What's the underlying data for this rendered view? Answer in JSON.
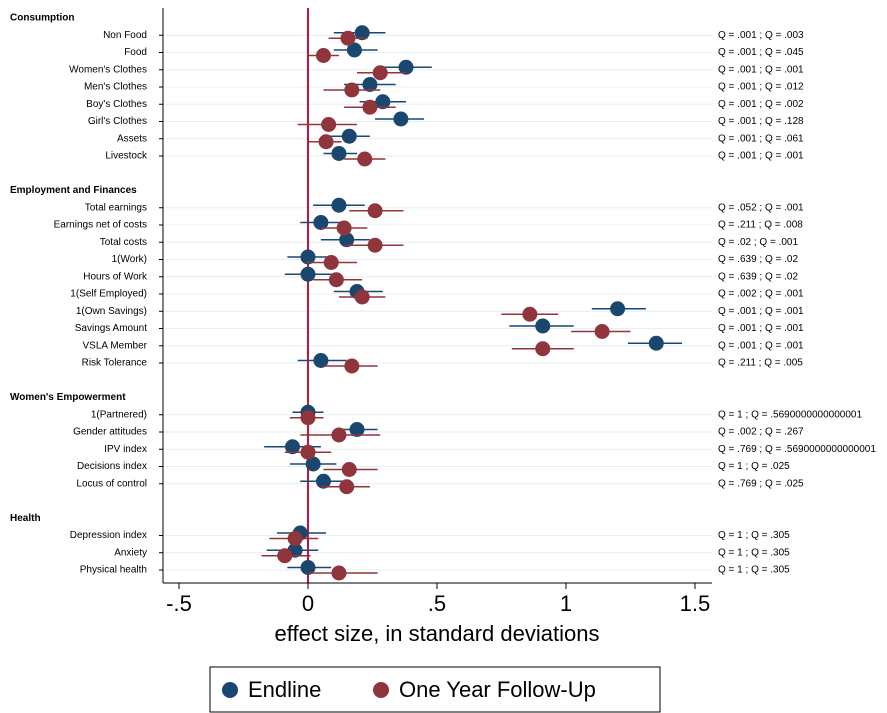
{
  "chart_data": {
    "type": "coefplot",
    "x_label": "effect size, in standard deviations",
    "xlim": [
      -0.562,
      1.566
    ],
    "xticks": [
      {
        "value": -0.5,
        "label": "-.5"
      },
      0,
      {
        "value": 0.5,
        "label": ".5"
      },
      1,
      1.5
    ],
    "reference_line": 0,
    "reference_color": "#c0143c",
    "groups": [
      {
        "title": "Consumption",
        "categories": [
          "Non Food",
          "Food",
          "Women's Clothes",
          "Men's Clothes",
          "Boy's Clothes",
          "Girl's Clothes",
          "Assets ",
          "Livestock"
        ],
        "annotations": [
          "Q = .001 ; Q = .003",
          "Q = .001 ; Q = .045",
          "Q = .001 ; Q = .001",
          "Q = .001 ; Q = .012",
          "Q = .001 ; Q = .002",
          "Q = .001 ; Q = .128",
          "Q = .001 ; Q = .061",
          "Q = .001 ; Q = .001"
        ]
      },
      {
        "title": "Employment and Finances",
        "categories": [
          "Total earnings",
          "Earnings net of costs",
          "Total costs",
          "1(Work)",
          "Hours of Work",
          "1(Self Employed)",
          "1(Own Savings)",
          "Savings Amount",
          "VSLA Member",
          "Risk Tolerance"
        ],
        "annotations": [
          "Q = .052 ; Q = .001",
          "Q = .211 ; Q = .008",
          "Q = .02 ; Q = .001",
          "Q = .639 ; Q = .02",
          "Q = .639 ; Q = .02",
          "Q = .002 ; Q = .001",
          "Q = .001 ; Q = .001",
          "Q = .001 ; Q = .001",
          "Q = .001 ; Q = .001",
          "Q = .211 ; Q = .005"
        ]
      },
      {
        "title": "Women's Empowerment",
        "categories": [
          "1(Partnered)",
          "Gender attitudes",
          "IPV index",
          "Decisions index",
          "Locus of control"
        ],
        "annotations": [
          "Q = 1 ; Q = .5690000000000001",
          "Q = .002 ; Q = .267",
          "Q = .769 ; Q = .5690000000000001",
          "Q = 1 ; Q = .025",
          "Q = .769 ; Q = .025"
        ]
      },
      {
        "title": "Health",
        "categories": [
          "Depression index",
          "Anxiety",
          "Physical health"
        ],
        "annotations": [
          "Q = 1 ; Q = .305",
          "Q = 1 ; Q = .305",
          "Q = 1 ; Q = .305"
        ]
      }
    ],
    "series": [
      {
        "name": "Endline",
        "color": "#1a476f",
        "values": [
          [
            0.21,
            0.18,
            0.38,
            0.24,
            0.29,
            0.36,
            0.16,
            0.12
          ],
          [
            0.12,
            0.05,
            0.15,
            0,
            0,
            0.19,
            1.2,
            0.91,
            1.35,
            0.05
          ],
          [
            0,
            0.19,
            -0.06,
            0.02,
            0.06
          ],
          [
            -0.03,
            -0.05,
            0
          ]
        ],
        "lower": [
          [
            0.1,
            0.1,
            0.28,
            0.14,
            0.2,
            0.26,
            0.08,
            0.06
          ],
          [
            0.02,
            -0.03,
            0.05,
            -0.08,
            -0.09,
            0.1,
            1.1,
            0.78,
            1.24,
            -0.04
          ],
          [
            -0.06,
            0.11,
            -0.17,
            -0.07,
            -0.03
          ],
          [
            -0.12,
            -0.16,
            -0.08
          ]
        ],
        "upper": [
          [
            0.3,
            0.27,
            0.48,
            0.34,
            0.38,
            0.45,
            0.24,
            0.19
          ],
          [
            0.22,
            0.14,
            0.24,
            0.08,
            0.1,
            0.29,
            1.31,
            1.03,
            1.45,
            0.15
          ],
          [
            0.06,
            0.27,
            0.05,
            0.11,
            0.15
          ],
          [
            0.07,
            0.04,
            0.09
          ]
        ]
      },
      {
        "name": "One Year Follow-Up",
        "color": "#90353b",
        "values": [
          [
            0.155,
            0.06,
            0.28,
            0.17,
            0.24,
            0.08,
            0.07,
            0.22
          ],
          [
            0.26,
            0.14,
            0.26,
            0.09,
            0.11,
            0.21,
            0.86,
            1.14,
            0.91,
            0.17
          ],
          [
            0,
            0.12,
            0,
            0.16,
            0.15
          ],
          [
            -0.05,
            -0.09,
            0.12
          ]
        ],
        "lower": [
          [
            0.08,
            0,
            0.19,
            0.06,
            0.14,
            -0.04,
            0,
            0.14
          ],
          [
            0.16,
            0.05,
            0.14,
            -0.01,
            0.02,
            0.12,
            0.75,
            1.02,
            0.79,
            0.06
          ],
          [
            -0.07,
            -0.03,
            -0.09,
            0.06,
            0.05
          ],
          [
            -0.15,
            -0.18,
            0
          ]
        ],
        "upper": [
          [
            0.23,
            0.12,
            0.38,
            0.28,
            0.34,
            0.19,
            0.13,
            0.3
          ],
          [
            0.37,
            0.23,
            0.37,
            0.19,
            0.21,
            0.3,
            0.97,
            1.25,
            1.03,
            0.27
          ],
          [
            0.06,
            0.28,
            0.09,
            0.27,
            0.24
          ],
          [
            0.04,
            0.01,
            0.27
          ]
        ]
      }
    ]
  }
}
